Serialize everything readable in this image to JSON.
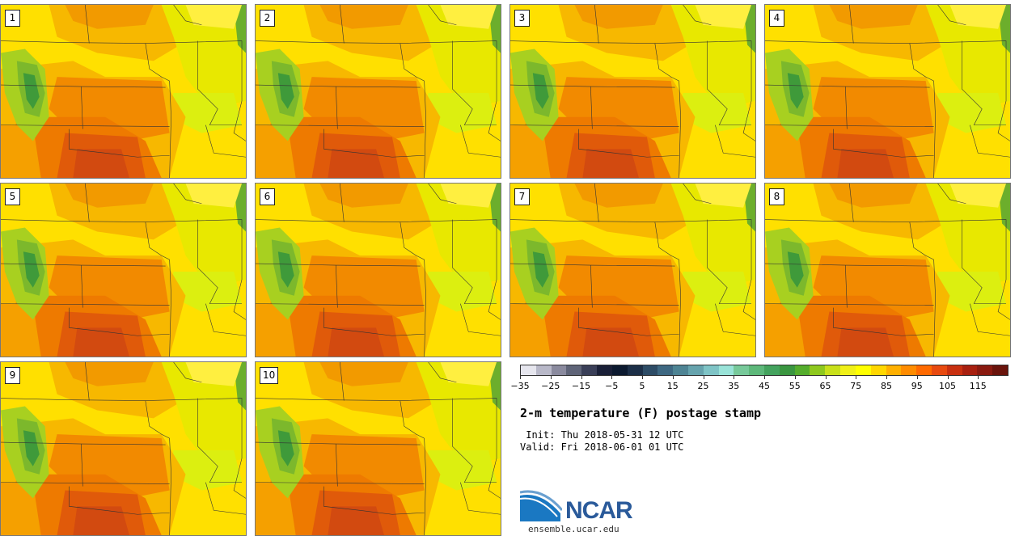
{
  "panels": [
    {
      "label": "1"
    },
    {
      "label": "2"
    },
    {
      "label": "3"
    },
    {
      "label": "4"
    },
    {
      "label": "5"
    },
    {
      "label": "6"
    },
    {
      "label": "7"
    },
    {
      "label": "8"
    },
    {
      "label": "9"
    },
    {
      "label": "10"
    }
  ],
  "colorbar": {
    "colors": [
      "#e6e6ee",
      "#b8b8c8",
      "#8a8a9e",
      "#5f6478",
      "#3a3f58",
      "#1a2038",
      "#0c1a30",
      "#1c2f48",
      "#2d4c66",
      "#3e6882",
      "#4e8494",
      "#66a3ad",
      "#7fc4c6",
      "#99e3d8",
      "#77c99a",
      "#5db87a",
      "#44a35e",
      "#3a9640",
      "#55ad2c",
      "#8ec81e",
      "#c8e01a",
      "#f0f018",
      "#ffff00",
      "#ffd700",
      "#ffb000",
      "#ff8c00",
      "#ff6a00",
      "#e84a10",
      "#c83010",
      "#a82010",
      "#8a1a10",
      "#6a140c"
    ],
    "tick_labels": [
      "−35",
      "−25",
      "−15",
      "−5",
      "5",
      "15",
      "25",
      "35",
      "45",
      "55",
      "65",
      "75",
      "85",
      "95",
      "105",
      "115"
    ]
  },
  "title": "2-m temperature (F) postage stamp",
  "init": " Init: Thu 2018-05-31 12 UTC",
  "valid": "Valid: Fri 2018-06-01 01 UTC",
  "logo": {
    "text": "NCAR",
    "color": "#2a5a9a"
  },
  "site": "ensemble.ucar.edu"
}
